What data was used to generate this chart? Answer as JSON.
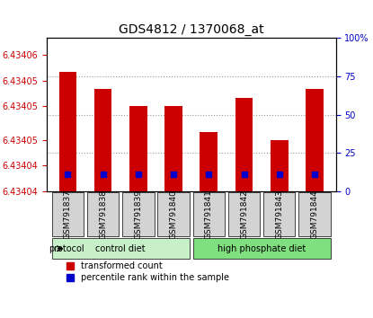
{
  "title": "GDS4812 / 1370068_at",
  "samples": [
    "GSM791837",
    "GSM791838",
    "GSM791839",
    "GSM791840",
    "GSM791841",
    "GSM791842",
    "GSM791843",
    "GSM791844"
  ],
  "transformed_counts": [
    6.434054,
    6.434052,
    6.43405,
    6.43405,
    6.434047,
    6.434051,
    6.434046,
    6.434052
  ],
  "percentile_ranks": [
    12,
    12,
    12,
    12,
    12,
    12,
    15,
    12
  ],
  "y_min": 6.43404,
  "y_max": 6.434058,
  "y_ticks": [
    6.43404,
    6.434045,
    6.43405,
    6.434055,
    6.434058
  ],
  "y_tick_labels": [
    "6.43404",
    "6.43405",
    "6.43405",
    "6.43405",
    "6.43405"
  ],
  "right_y_ticks": [
    0,
    25,
    50,
    75,
    100
  ],
  "right_y_tick_labels": [
    "0",
    "25",
    "50",
    "75",
    "100%"
  ],
  "protocol_groups": [
    {
      "label": "control diet",
      "start": 0,
      "end": 4,
      "color": "#c8f0c8"
    },
    {
      "label": "high phosphate diet",
      "start": 4,
      "end": 8,
      "color": "#80e080"
    }
  ],
  "bar_color": "#cc0000",
  "percentile_color": "#0000cc",
  "base_value": 6.43404,
  "legend_items": [
    {
      "label": "transformed count",
      "color": "#cc0000",
      "marker": "s"
    },
    {
      "label": "percentile rank within the sample",
      "color": "#0000cc",
      "marker": "s"
    }
  ],
  "grid_color": "#999999",
  "tick_label_color_left": "#cc0000",
  "tick_label_color_right": "#0000cc"
}
